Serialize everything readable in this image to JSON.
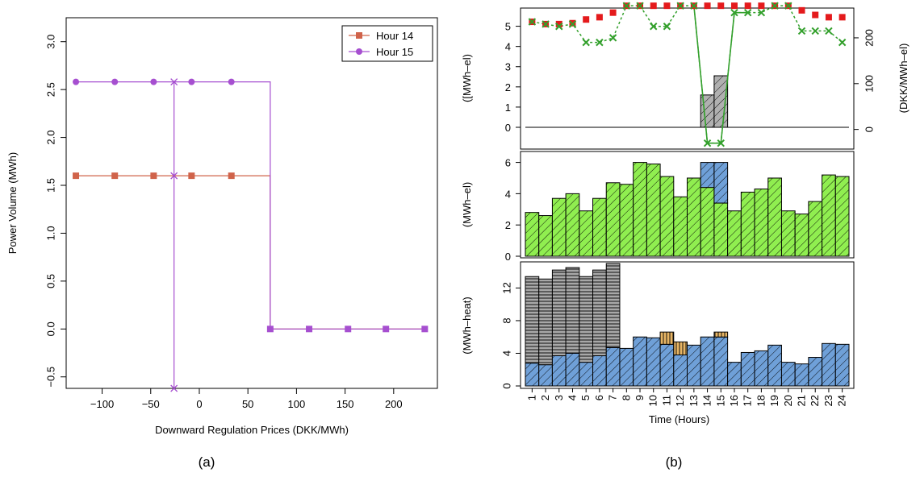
{
  "figure": {
    "caption_a": "(a)",
    "caption_b": "(b)"
  },
  "chart_data": [
    {
      "id": "a",
      "type": "line",
      "title": "",
      "xlabel": "Downward Regulation Prices (DKK/MWh)",
      "ylabel": "Power Volume (MWh)",
      "xlim": [
        -137,
        245
      ],
      "ylim": [
        -0.62,
        3.25
      ],
      "xticks": [
        -100,
        -50,
        0,
        50,
        100,
        150,
        200
      ],
      "xtick_labels": [
        "−100",
        "−50",
        "0",
        "50",
        "100",
        "150",
        "200"
      ],
      "yticks": [
        -0.5,
        0.0,
        0.5,
        1.0,
        1.5,
        2.0,
        2.5,
        3.0
      ],
      "ytick_labels": [
        "−0.5",
        "0.0",
        "0.5",
        "1.0",
        "1.5",
        "2.0",
        "2.5",
        "3.0"
      ],
      "legend": {
        "position": "top-right"
      },
      "colors": {
        "hour14": "#D0634A",
        "hour15": "#A64FD0"
      },
      "series": [
        {
          "name": "Hour 14",
          "marker": "square",
          "x": [
            -127,
            -87,
            -47,
            -8,
            33,
            73,
            113,
            153,
            192,
            232
          ],
          "y": [
            1.6,
            1.6,
            1.6,
            1.6,
            1.6,
            0,
            0,
            0,
            0,
            0
          ]
        },
        {
          "name": "Hour 15",
          "marker": "circle",
          "x": [
            -127,
            -87,
            -47,
            -8,
            33
          ],
          "y": [
            2.58,
            2.58,
            2.58,
            2.58,
            2.58
          ]
        }
      ],
      "cross_markers": {
        "x": -26,
        "y": [
          2.58,
          1.6,
          -0.62
        ]
      },
      "vertical_line": {
        "x": -26,
        "y_range": [
          -0.62,
          2.58
        ]
      }
    },
    {
      "id": "b-top",
      "type": "bar",
      "title": "",
      "xlabel": "",
      "ylabel": "([MWh–el)",
      "ylabel_right": "(DKK/MWh–el)",
      "ylim": [
        0,
        5.9
      ],
      "yticks": [
        0,
        1,
        2,
        3,
        4,
        5
      ],
      "ylim_right": [
        -20,
        265
      ],
      "yticks_right": [
        0,
        100,
        200
      ],
      "categories": [
        "1",
        "2",
        "3",
        "4",
        "5",
        "6",
        "7",
        "8",
        "9",
        "10",
        "11",
        "12",
        "13",
        "14",
        "15",
        "16",
        "17",
        "18",
        "19",
        "20",
        "21",
        "22",
        "23",
        "24"
      ],
      "colors": {
        "bars": "#B0B0B0",
        "red_points": "#E41A1C",
        "green_crosses": "#33A02C"
      },
      "bars": [
        0,
        0,
        0,
        0,
        0,
        0,
        0,
        0,
        0,
        0,
        0,
        0,
        0,
        1.6,
        2.55,
        0,
        0,
        0,
        0,
        0,
        0,
        0,
        0,
        0
      ],
      "red_points": [
        235,
        230,
        230,
        232,
        240,
        245,
        255,
        270,
        270,
        270,
        270,
        270,
        270,
        270,
        270,
        270,
        270,
        270,
        270,
        270,
        260,
        250,
        245,
        245
      ],
      "green_crosses": [
        235,
        230,
        225,
        230,
        190,
        190,
        200,
        270,
        270,
        225,
        225,
        270,
        270,
        -30,
        -30,
        255,
        255,
        255,
        270,
        270,
        215,
        215,
        215,
        190
      ]
    },
    {
      "id": "b-middle",
      "type": "bar",
      "title": "",
      "xlabel": "",
      "ylabel": "(MWh–el)",
      "ylim": [
        0,
        6.7
      ],
      "yticks": [
        0,
        2,
        4,
        6
      ],
      "categories": [
        "1",
        "2",
        "3",
        "4",
        "5",
        "6",
        "7",
        "8",
        "9",
        "10",
        "11",
        "12",
        "13",
        "14",
        "15",
        "16",
        "17",
        "18",
        "19",
        "20",
        "21",
        "22",
        "23",
        "24"
      ],
      "colors": {
        "base": "#90EE50",
        "extra": "#6FA0D8"
      },
      "series": [
        {
          "values": [
            2.8,
            2.6,
            3.7,
            4.0,
            2.9,
            3.7,
            4.7,
            4.6,
            6.0,
            5.9,
            5.1,
            3.8,
            5.0,
            4.4,
            3.4,
            2.9,
            4.1,
            4.3,
            5.0,
            2.9,
            2.7,
            3.5,
            5.2,
            5.1
          ]
        },
        {
          "values": [
            0,
            0,
            0,
            0,
            0,
            0,
            0,
            0,
            0,
            0,
            0,
            0,
            0,
            1.6,
            2.6,
            0,
            0,
            0,
            0,
            0,
            0,
            0,
            0,
            0
          ]
        }
      ]
    },
    {
      "id": "b-bottom",
      "type": "bar",
      "title": "",
      "xlabel": "Time (Hours)",
      "ylabel": "(MWh–heat)",
      "ylim": [
        0,
        15.2
      ],
      "yticks": [
        0,
        4,
        8,
        12
      ],
      "categories": [
        "1",
        "2",
        "3",
        "4",
        "5",
        "6",
        "7",
        "8",
        "9",
        "10",
        "11",
        "12",
        "13",
        "14",
        "15",
        "16",
        "17",
        "18",
        "19",
        "20",
        "21",
        "22",
        "23",
        "24"
      ],
      "colors": {
        "base": "#6FA0D8",
        "grey": "#A8A8A8",
        "tan": "#E6B464"
      },
      "series": [
        {
          "values": [
            2.8,
            2.6,
            3.7,
            4.0,
            2.9,
            3.7,
            4.7,
            4.6,
            6.0,
            5.9,
            5.1,
            3.8,
            5.0,
            6.0,
            6.0,
            2.9,
            4.1,
            4.3,
            5.0,
            2.9,
            2.7,
            3.5,
            5.2,
            5.1
          ]
        },
        {
          "values": [
            10.6,
            10.5,
            10.5,
            10.5,
            10.5,
            10.5,
            10.3,
            0,
            0,
            0,
            1.5,
            1.6,
            0,
            0,
            0.6,
            0,
            0,
            0,
            0,
            0,
            0,
            0,
            0,
            0
          ]
        }
      ],
      "second_series_color": [
        "grey",
        "grey",
        "grey",
        "grey",
        "grey",
        "grey",
        "grey",
        "grey",
        "grey",
        "grey",
        "tan",
        "tan",
        "grey",
        "grey",
        "tan",
        "grey",
        "grey",
        "grey",
        "grey",
        "grey",
        "grey",
        "grey",
        "grey",
        "grey"
      ]
    }
  ]
}
